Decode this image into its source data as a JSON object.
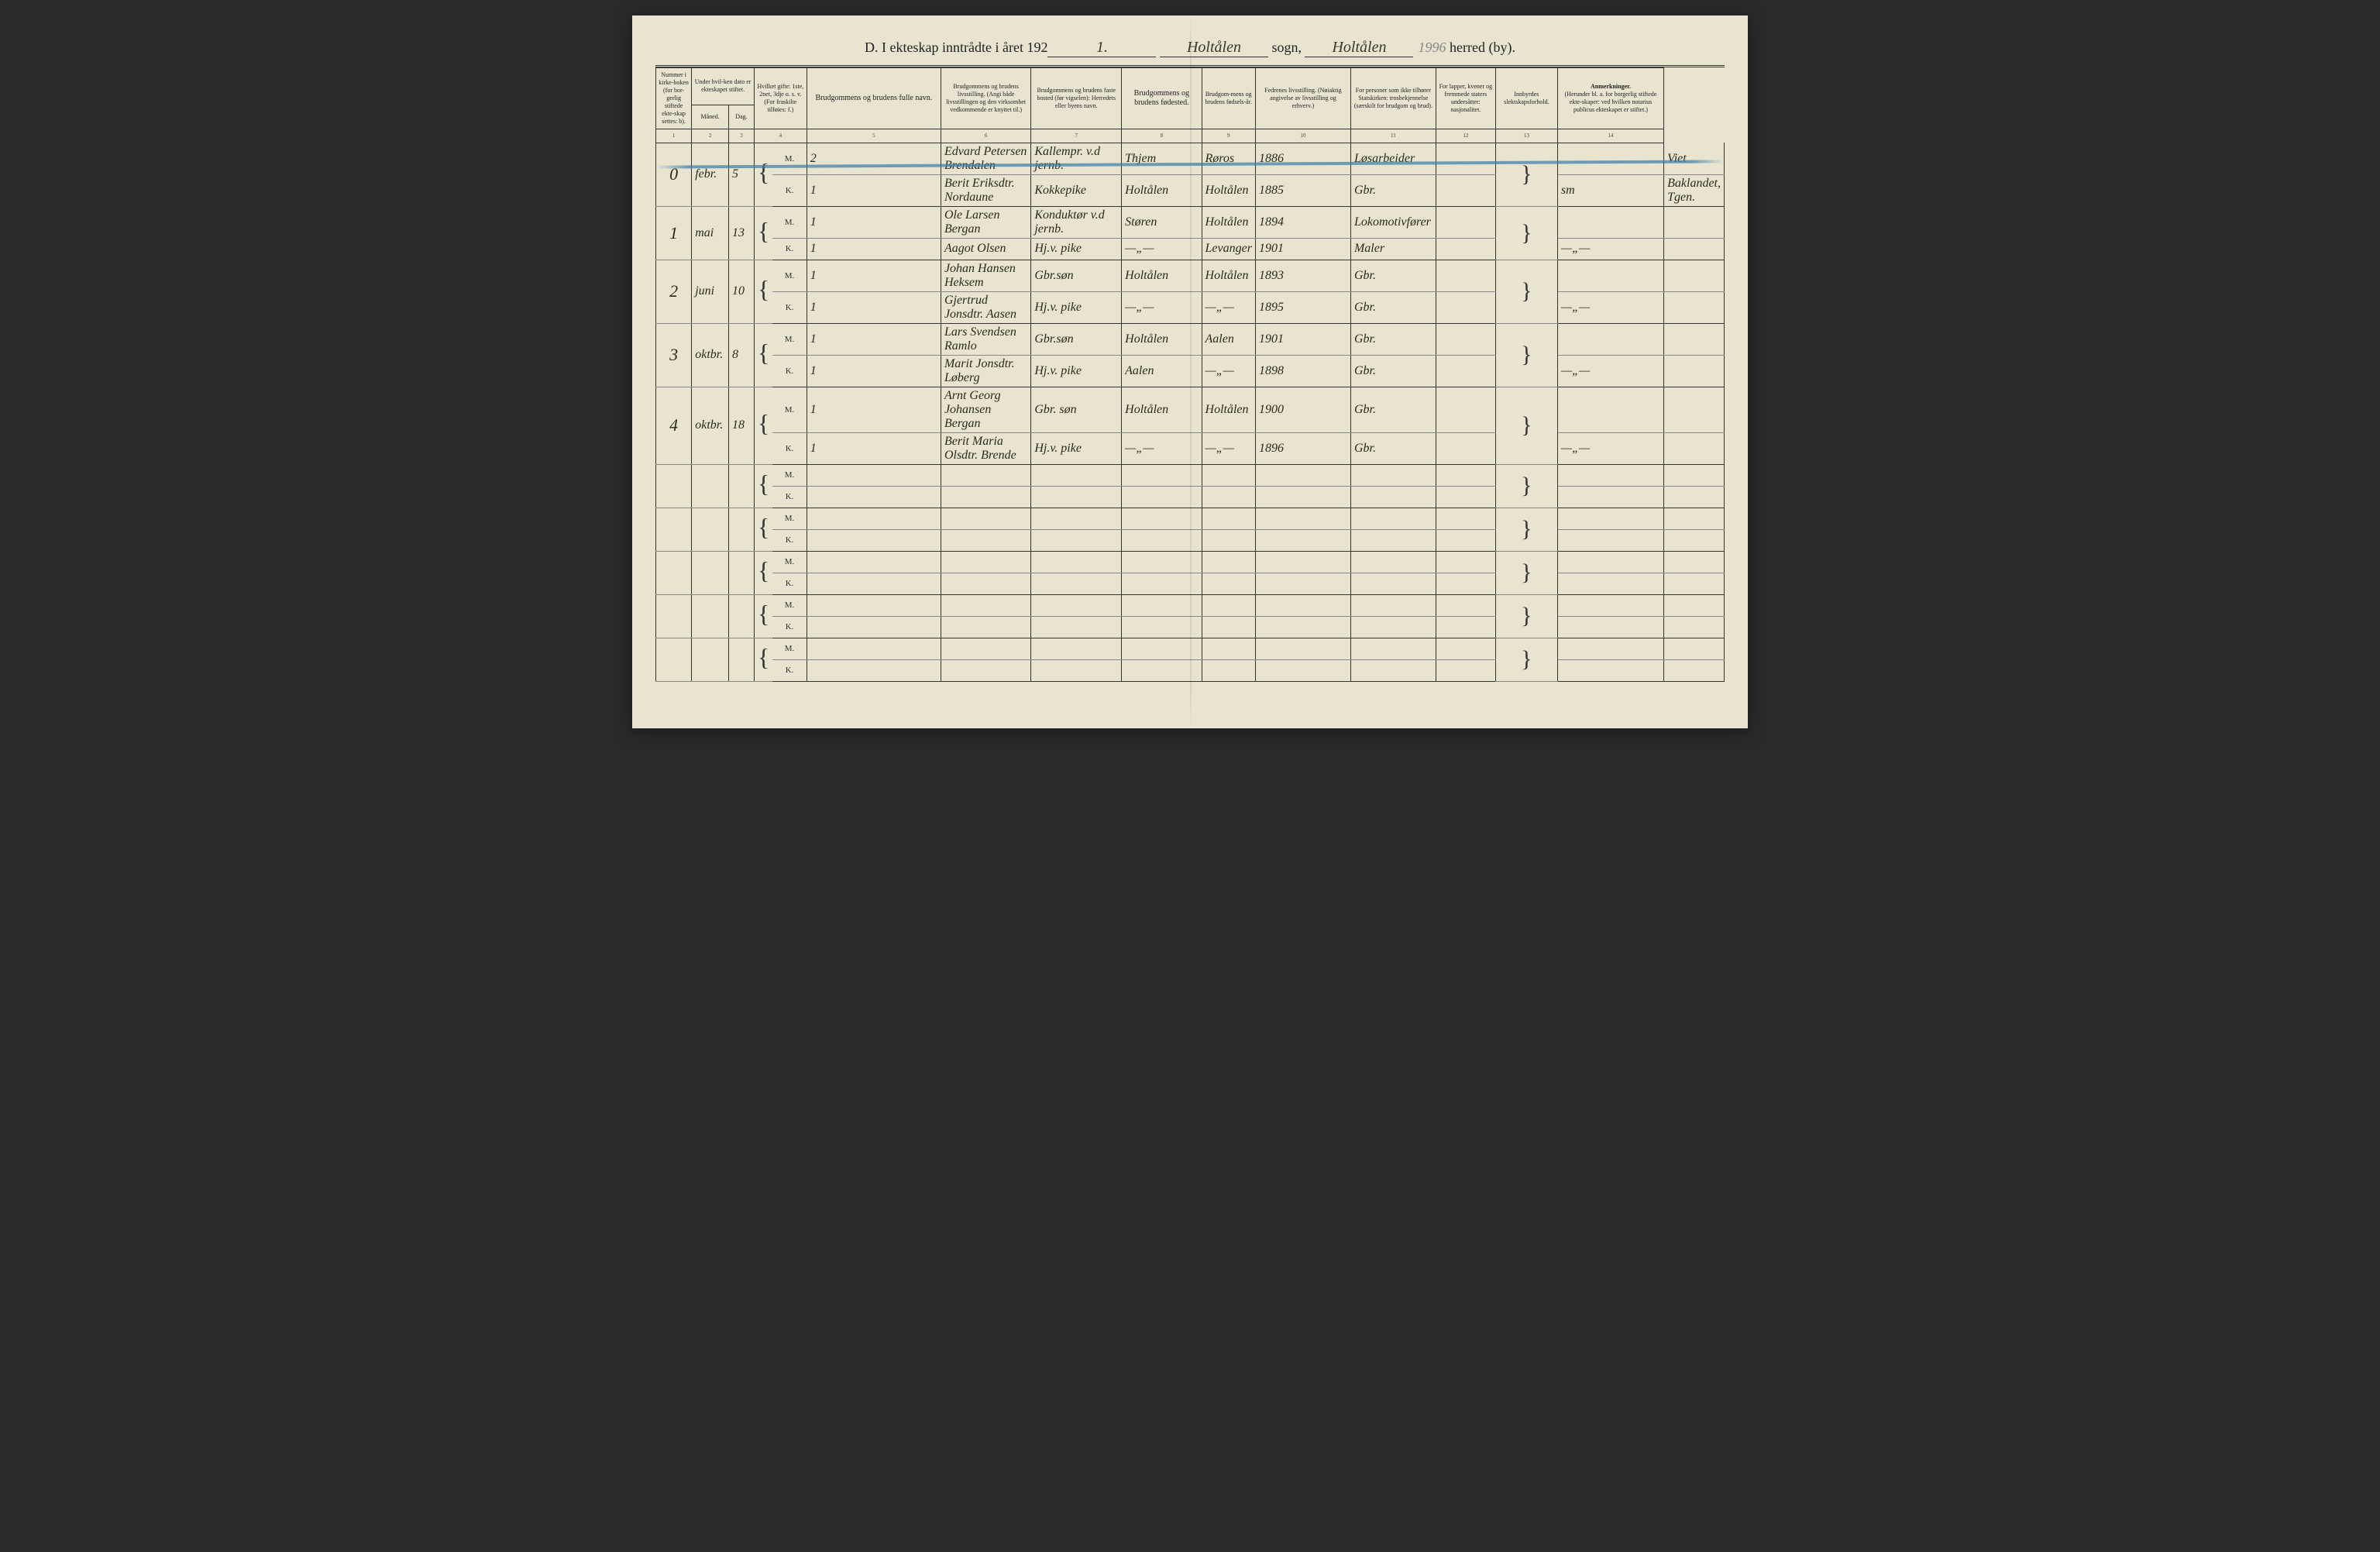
{
  "page": {
    "background_color": "#e8e4d0",
    "ink_color": "#222222",
    "handwriting_color": "#3a3a2a",
    "catalog_color": "#888888",
    "blue_stroke_color": "#3a7ca8",
    "border_color": "#333333"
  },
  "title": {
    "prefix": "D.   I ekteskap inntrådte i året 192",
    "year_suffix": "1.",
    "sogn": "Holtålen",
    "sogn_label": "sogn,",
    "herred": "Holtålen",
    "catalog_number": "1996",
    "herred_label": "herred (by)."
  },
  "headers": {
    "col1": "Nummer i kirke-boken (for bor-gerlig stiftede ekte-skap settes: b).",
    "col2": "Under hvil-ken dato er ekteskapet stiftet.",
    "col2a": "Måned.",
    "col2b": "Dag.",
    "col3": "Hvilket gifte: 1ste, 2net, 3dje o. s. v. (For fraskilte tilføies: f.)",
    "col4": "Brudgommens og brudens fulle navn.",
    "col5": "Brudgommens og brudens livsstilling. (Angi både livsstillingen og den virksomhet vedkommende er knyttet til.)",
    "col6": "Brudgommens og brudens faste bosted (før vigselen): Herredets eller byens navn.",
    "col7": "Brudgommens og brudens fødested.",
    "col8": "Brudgom-mens og brudens fødsels-år.",
    "col9": "Fedrenes livsstilling. (Nøiaktig angivelse av livsstilling og erhverv.)",
    "col10": "For personer som ikke tilhører Statskirken: trosbekjennelse (særskilt for brudgom og brud).",
    "col11": "For lapper, kvener og fremmede staters undersåtter: nasjonalitet.",
    "col12": "Innbyrdes slektskapsforhold.",
    "col13_title": "Anmerkninger.",
    "col13_sub": "(Herunder bl. a. for borgerlig stiftede ekte-skaper: ved hvilken notarius publicus ekteskapet er stiftet.)",
    "nums": [
      "1",
      "2",
      "3",
      "4",
      "5",
      "6",
      "7",
      "8",
      "9",
      "10",
      "11",
      "12",
      "13",
      "14"
    ]
  },
  "mk_labels": {
    "m": "M.",
    "k": "K."
  },
  "entries": [
    {
      "num": "0",
      "month": "febr.",
      "day": "5",
      "m": {
        "gifte": "2",
        "name": "Edvard Petersen Brendalen",
        "stilling": "Kallempr. v.d jernb.",
        "bosted": "Thjem",
        "fodested": "Røros",
        "aar": "1886",
        "far": "Løsarbeider",
        "col10": "",
        "col11": "",
        "col12": "",
        "anm": "Viet"
      },
      "k": {
        "gifte": "1",
        "name": "Berit Eriksdtr. Nordaune",
        "stilling": "Kokkepike",
        "bosted": "Holtålen",
        "fodested": "Holtålen",
        "aar": "1885",
        "far": "Gbr.",
        "col10": "",
        "col11": "",
        "col12": "sm",
        "anm": "Baklandet, Tgen."
      }
    },
    {
      "num": "1",
      "month": "mai",
      "day": "13",
      "m": {
        "gifte": "1",
        "name": "Ole Larsen Bergan",
        "stilling": "Konduktør v.d jernb.",
        "bosted": "Støren",
        "fodested": "Holtålen",
        "aar": "1894",
        "far": "Lokomotivfører",
        "col10": "",
        "col11": "",
        "col12": "",
        "anm": ""
      },
      "k": {
        "gifte": "1",
        "name": "Aagot Olsen",
        "stilling": "Hj.v. pike",
        "bosted": "—„—",
        "fodested": "Levanger",
        "aar": "1901",
        "far": "Maler",
        "col10": "",
        "col11": "",
        "col12": "—„—",
        "anm": ""
      }
    },
    {
      "num": "2",
      "month": "juni",
      "day": "10",
      "m": {
        "gifte": "1",
        "name": "Johan Hansen Heksem",
        "stilling": "Gbr.søn",
        "bosted": "Holtålen",
        "fodested": "Holtålen",
        "aar": "1893",
        "far": "Gbr.",
        "col10": "",
        "col11": "",
        "col12": "",
        "anm": ""
      },
      "k": {
        "gifte": "1",
        "name": "Gjertrud Jonsdtr. Aasen",
        "stilling": "Hj.v. pike",
        "bosted": "—„—",
        "fodested": "—„—",
        "aar": "1895",
        "far": "Gbr.",
        "col10": "",
        "col11": "",
        "col12": "—„—",
        "anm": ""
      }
    },
    {
      "num": "3",
      "month": "oktbr.",
      "day": "8",
      "m": {
        "gifte": "1",
        "name": "Lars Svendsen Ramlo",
        "stilling": "Gbr.søn",
        "bosted": "Holtålen",
        "fodested": "Aalen",
        "aar": "1901",
        "far": "Gbr.",
        "col10": "",
        "col11": "",
        "col12": "",
        "anm": ""
      },
      "k": {
        "gifte": "1",
        "name": "Marit Jonsdtr. Løberg",
        "stilling": "Hj.v. pike",
        "bosted": "Aalen",
        "fodested": "—„—",
        "aar": "1898",
        "far": "Gbr.",
        "col10": "",
        "col11": "",
        "col12": "—„—",
        "anm": ""
      }
    },
    {
      "num": "4",
      "month": "oktbr.",
      "day": "18",
      "m": {
        "gifte": "1",
        "name": "Arnt Georg Johansen Bergan",
        "stilling": "Gbr. søn",
        "bosted": "Holtålen",
        "fodested": "Holtålen",
        "aar": "1900",
        "far": "Gbr.",
        "col10": "",
        "col11": "",
        "col12": "",
        "anm": ""
      },
      "k": {
        "gifte": "1",
        "name": "Berit Maria Olsdtr. Brende",
        "stilling": "Hj.v. pike",
        "bosted": "—„—",
        "fodested": "—„—",
        "aar": "1896",
        "far": "Gbr.",
        "col10": "",
        "col11": "",
        "col12": "—„—",
        "anm": ""
      }
    }
  ],
  "empty_pairs": 5,
  "col_widths_pct": [
    3.5,
    3.5,
    2.5,
    1.5,
    3.5,
    14,
    9,
    9,
    8,
    4.5,
    10,
    8,
    6,
    6,
    11
  ]
}
